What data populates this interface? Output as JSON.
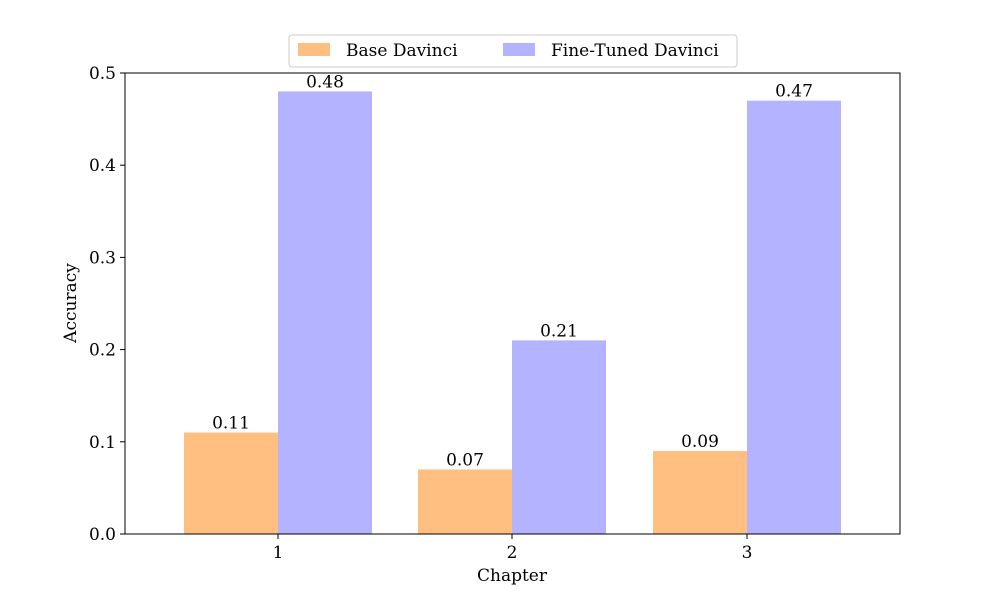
{
  "chart_data": {
    "type": "bar",
    "categories": [
      "1",
      "2",
      "3"
    ],
    "series": [
      {
        "name": "Base Davinci",
        "values": [
          0.11,
          0.07,
          0.09
        ],
        "labels": [
          "0.11",
          "0.07",
          "0.09"
        ],
        "color": "#FFBF80"
      },
      {
        "name": "Fine-Tuned Davinci",
        "values": [
          0.48,
          0.21,
          0.47
        ],
        "labels": [
          "0.48",
          "0.21",
          "0.47"
        ],
        "color": "#B3B3FF"
      }
    ],
    "xlabel": "Chapter",
    "ylabel": "Accuracy",
    "ylim": [
      0,
      0.5
    ],
    "yticks": [
      {
        "value": 0.0,
        "label": "0.0"
      },
      {
        "value": 0.1,
        "label": "0.1"
      },
      {
        "value": 0.2,
        "label": "0.2"
      },
      {
        "value": 0.3,
        "label": "0.3"
      },
      {
        "value": 0.4,
        "label": "0.4"
      },
      {
        "value": 0.5,
        "label": "0.5"
      }
    ],
    "grid": false,
    "legend_position": "top-center"
  }
}
